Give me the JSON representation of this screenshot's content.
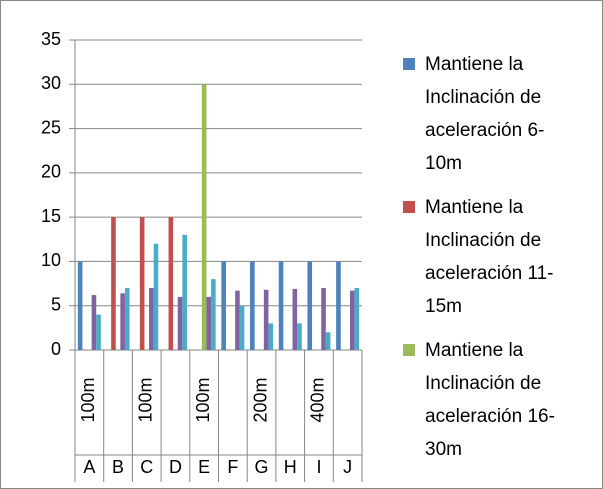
{
  "chart_data": {
    "type": "bar",
    "categories": [
      "A",
      "B",
      "C",
      "D",
      "E",
      "F",
      "G",
      "H",
      "I",
      "J"
    ],
    "category_groups": [
      "100m",
      null,
      "100m",
      null,
      "100m",
      null,
      "200m",
      null,
      "400m",
      null
    ],
    "series": [
      {
        "name": "Mantiene la Inclinación de aceleración 6-10m",
        "color": "#4f81bd",
        "values": [
          10,
          null,
          null,
          null,
          null,
          10,
          10,
          10,
          10,
          10
        ]
      },
      {
        "name": "Mantiene la Inclinación de aceleración 11-15m",
        "color": "#c0504d",
        "values": [
          null,
          15,
          15,
          15,
          null,
          null,
          null,
          null,
          null,
          null
        ]
      },
      {
        "name": "Mantiene la Inclinación de aceleración 16-30m",
        "color": "#9bbb59",
        "values": [
          null,
          null,
          null,
          null,
          30,
          null,
          null,
          null,
          null,
          null
        ]
      },
      {
        "color": "#8064a2",
        "values": [
          6.2,
          6.4,
          7,
          6,
          6,
          6.7,
          6.8,
          6.9,
          7,
          6.7
        ]
      },
      {
        "color": "#4bacc6",
        "values": [
          4,
          7,
          12,
          13,
          8,
          5,
          3,
          3,
          2,
          7
        ]
      }
    ],
    "ylim": [
      0,
      35
    ],
    "yticks": [
      0,
      5,
      10,
      15,
      20,
      25,
      30,
      35
    ],
    "grid": true,
    "legend": "right"
  }
}
